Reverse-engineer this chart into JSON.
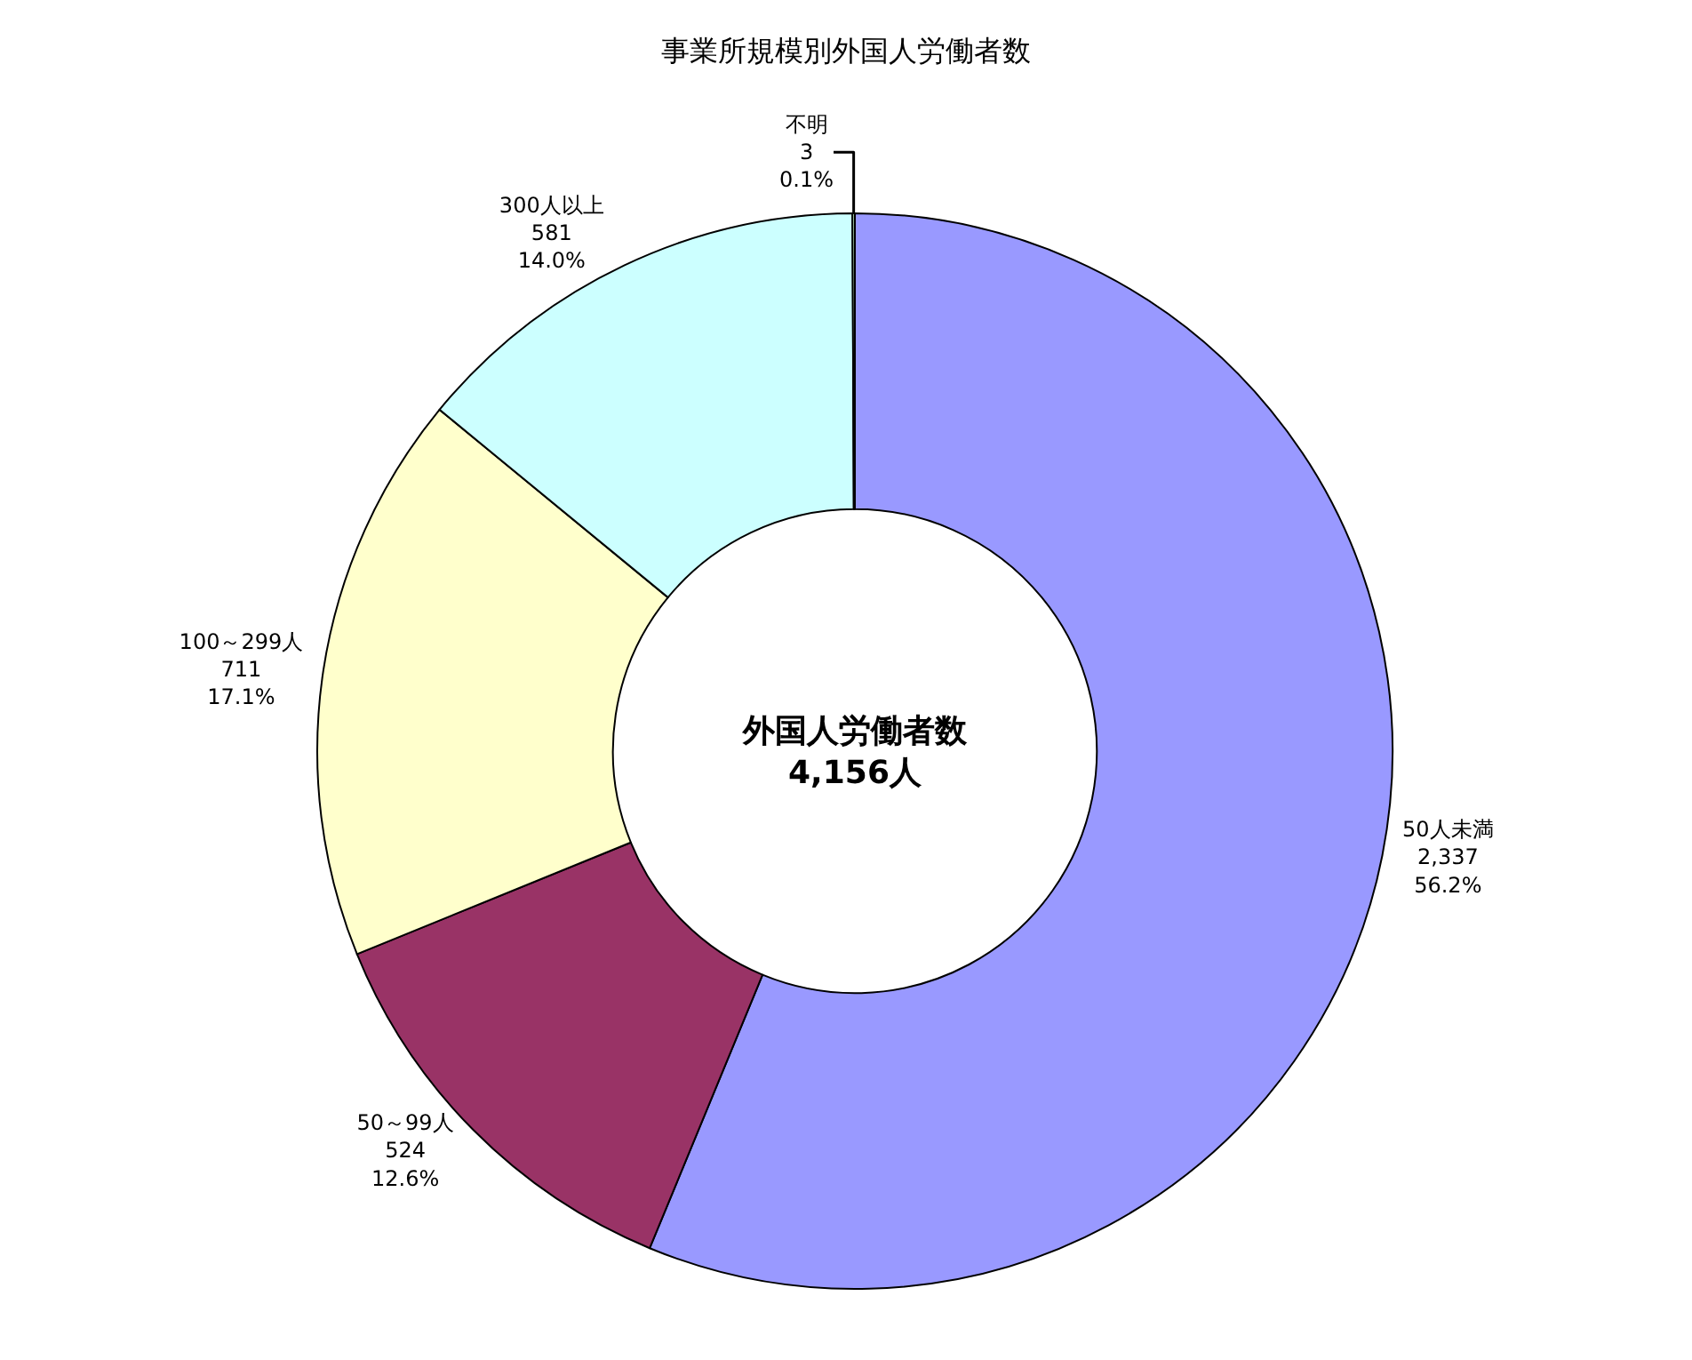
{
  "chart_data": {
    "type": "donut",
    "title": "事業所規模別外国人労働者数",
    "categories": [
      "50人未満",
      "50～99人",
      "100～299人",
      "300人以上",
      "不明"
    ],
    "values": [
      2337,
      524,
      711,
      581,
      3
    ],
    "colors": [
      "#9999ff",
      "#993366",
      "#ffffcc",
      "#ccffff",
      "#ccffcc"
    ],
    "value_labels": [
      "2,337\n56.2%",
      "524\n12.6%",
      "711\n17.1%",
      "581\n14.0%",
      "3\n0.1%"
    ],
    "annotations": [
      "外国人労働者数\n4,156人"
    ],
    "legend": false
  }
}
